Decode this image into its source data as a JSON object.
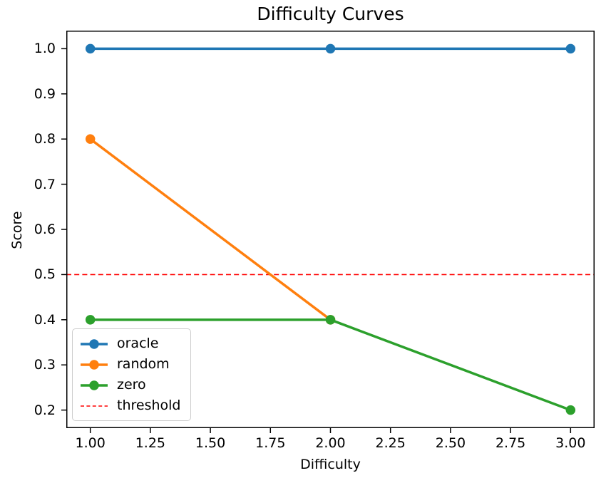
{
  "chart_data": {
    "type": "line",
    "title": "Difficulty Curves",
    "xlabel": "Difficulty",
    "ylabel": "Score",
    "x_range": [
      0.9,
      3.1
    ],
    "y_range": [
      0.16,
      1.04
    ],
    "x_tick_labels": [
      "1.00",
      "1.25",
      "1.50",
      "1.75",
      "2.00",
      "2.25",
      "2.50",
      "2.75",
      "3.00"
    ],
    "y_tick_labels": [
      "0.2",
      "0.3",
      "0.4",
      "0.5",
      "0.6",
      "0.7",
      "0.8",
      "0.9",
      "1.0"
    ],
    "grid": false,
    "series": [
      {
        "name": "oracle",
        "color": "#1f77b4",
        "marker": "circle",
        "x": [
          1.0,
          2.0,
          3.0
        ],
        "values": [
          1.0,
          1.0,
          1.0
        ]
      },
      {
        "name": "random",
        "color": "#ff7f0e",
        "marker": "circle",
        "x": [
          1.0,
          2.0
        ],
        "values": [
          0.8,
          0.4
        ]
      },
      {
        "name": "zero",
        "color": "#2ca02c",
        "marker": "circle",
        "x": [
          1.0,
          2.0,
          3.0
        ],
        "values": [
          0.4,
          0.4,
          0.2
        ]
      }
    ],
    "threshold": {
      "name": "threshold",
      "value": 0.5,
      "color": "#ff0000",
      "style": "dashed"
    },
    "legend": {
      "position": "lower-left",
      "entries": [
        "oracle",
        "random",
        "zero",
        "threshold"
      ]
    }
  }
}
